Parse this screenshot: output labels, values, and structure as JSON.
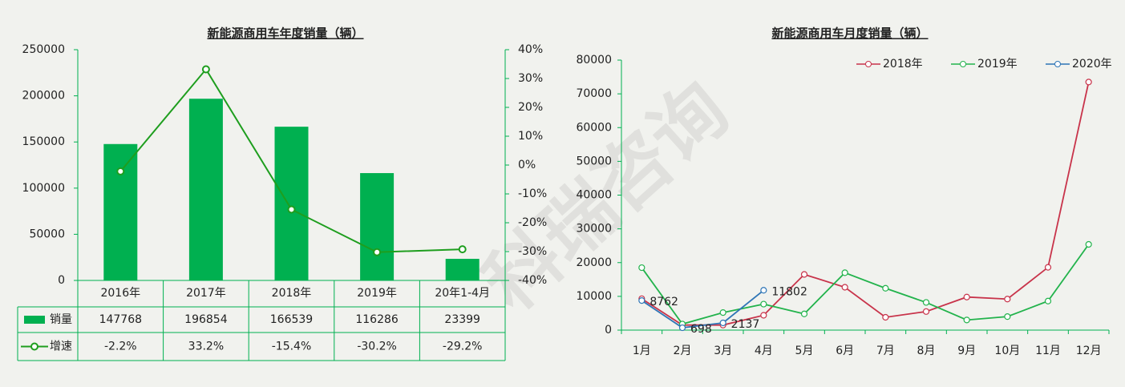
{
  "watermark": "科瑞咨询",
  "chart_data": [
    {
      "type": "combo",
      "title": "新能源商用车年度销量（辆）",
      "categories": [
        "2016年",
        "2017年",
        "2018年",
        "2019年",
        "20年1-4月"
      ],
      "series": [
        {
          "name": "销量",
          "type": "bar",
          "color": "#00b050",
          "values": [
            147768,
            196854,
            166539,
            116286,
            23399
          ]
        },
        {
          "name": "增速",
          "type": "line",
          "axis": "y2",
          "color": "#1e9e1e",
          "values": [
            -2.2,
            33.2,
            -15.4,
            -30.2,
            -29.2
          ],
          "value_labels": [
            "-2.2%",
            "33.2%",
            "-15.4%",
            "-30.2%",
            "-29.2%"
          ]
        }
      ],
      "ylim": [
        0,
        250000
      ],
      "yticks": [
        0,
        50000,
        100000,
        150000,
        200000,
        250000
      ],
      "y2lim": [
        -40,
        40
      ],
      "y2ticks": [
        {
          "value": -40,
          "label": "-40%"
        },
        {
          "value": -30,
          "label": "-30%"
        },
        {
          "value": -20,
          "label": "-20%"
        },
        {
          "value": -10,
          "label": "-10%"
        },
        {
          "value": 0,
          "label": "0%"
        },
        {
          "value": 10,
          "label": "10%"
        },
        {
          "value": 20,
          "label": "20%"
        },
        {
          "value": 30,
          "label": "30%"
        },
        {
          "value": 40,
          "label": "40%"
        }
      ],
      "data_table": true,
      "grid": false
    },
    {
      "type": "line",
      "title": "新能源商用车月度销量（辆）",
      "categories": [
        "1月",
        "2月",
        "3月",
        "4月",
        "5月",
        "6月",
        "7月",
        "8月",
        "9月",
        "10月",
        "11月",
        "12月"
      ],
      "series": [
        {
          "name": "2018年",
          "color": "#c8334a",
          "values": [
            9300,
            1500,
            1500,
            4400,
            16500,
            12700,
            3800,
            5500,
            9800,
            9200,
            18600,
            73500
          ]
        },
        {
          "name": "2019年",
          "color": "#22b34c",
          "values": [
            18500,
            1800,
            5200,
            7700,
            4800,
            17000,
            12400,
            8200,
            3000,
            4000,
            8600,
            25400
          ]
        },
        {
          "name": "2020年",
          "color": "#2e75b6",
          "values": [
            8762,
            698,
            2137,
            11802,
            null,
            null,
            null,
            null,
            null,
            null,
            null,
            null
          ],
          "data_labels": true
        }
      ],
      "ylim": [
        0,
        80000
      ],
      "yticks": [
        0,
        10000,
        20000,
        30000,
        40000,
        50000,
        60000,
        70000,
        80000
      ],
      "legend": "top-right",
      "grid": false
    }
  ]
}
